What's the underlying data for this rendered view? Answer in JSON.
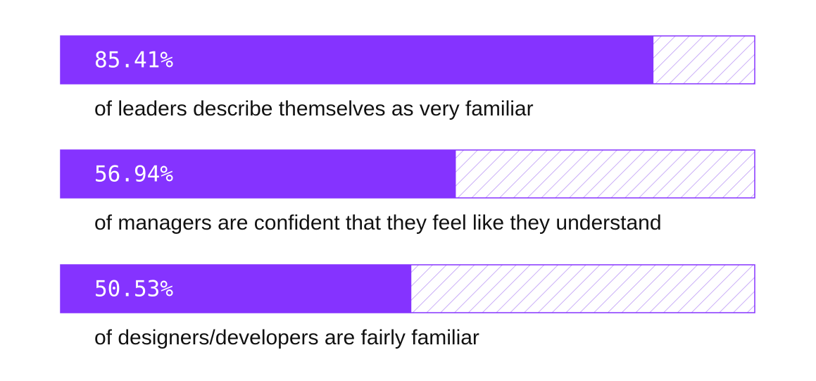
{
  "chart_data": {
    "type": "bar",
    "orientation": "horizontal",
    "categories": [
      "of leaders describe themselves as very familiar",
      "of managers are confident that they feel like they understand",
      "of designers/developers are fairly familiar"
    ],
    "values": [
      85.41,
      56.94,
      50.53
    ],
    "value_labels": [
      "85.41%",
      "56.94%",
      "50.53%"
    ],
    "color": "#8533ff",
    "xlim": [
      0,
      100
    ]
  }
}
